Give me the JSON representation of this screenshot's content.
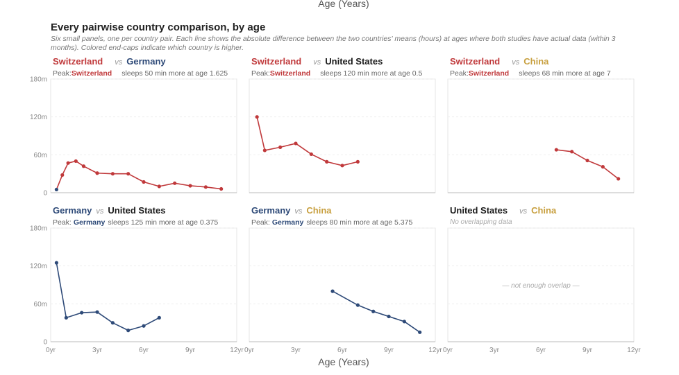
{
  "top_axis_title": "Age (Years)",
  "title": "Every pairwise country comparison, by age",
  "subtitle": "Six small panels, one per country pair. Each line shows the absolute difference between the two countries' means (hours) at ages where both studies have actual data (within 3 months). Colored end-caps indicate which country is higher.",
  "colors": {
    "Switzerland": "#c0393b",
    "Germany": "#2e4a78",
    "United States": "#1a1a1a",
    "China": "#c8a040"
  },
  "chart_data": {
    "type": "line",
    "small_multiples": true,
    "xlabel": "Age (Years)",
    "xlim": [
      0,
      12
    ],
    "ylim": [
      0,
      180
    ],
    "x_ticks": [
      "0yr",
      "3yr",
      "6yr",
      "9yr",
      "12yr"
    ],
    "y_ticks": [
      "0",
      "60m",
      "120m",
      "180m"
    ],
    "panels": [
      {
        "a": "Switzerland",
        "vs": "vs",
        "b": "Germany",
        "peak_prefix": "Peak:",
        "peak_country": "Switzerland",
        "peak_text": "sleeps 50 min more at age 1.625",
        "series": {
          "x": [
            0.375,
            0.75,
            1.125,
            1.625,
            2.125,
            3,
            4,
            5,
            6,
            7,
            8,
            9,
            10,
            11
          ],
          "y": [
            5,
            28,
            47,
            50,
            42,
            31,
            30,
            30,
            17,
            10,
            15,
            11,
            9,
            6
          ],
          "colors": [
            "de",
            "sw",
            "sw",
            "sw",
            "sw",
            "sw",
            "sw",
            "sw",
            "sw",
            "sw",
            "sw",
            "sw",
            "sw",
            "sw"
          ]
        }
      },
      {
        "a": "Switzerland",
        "vs": "vs",
        "b": "United States",
        "peak_prefix": "Peak:",
        "peak_country": "Switzerland",
        "peak_text": "sleeps 120 min more at age 0.5",
        "series": {
          "x": [
            0.5,
            1,
            2,
            3,
            4,
            5,
            6,
            7
          ],
          "y": [
            120,
            67,
            72,
            78,
            61,
            49,
            43,
            49
          ],
          "colors": [
            "sw",
            "sw",
            "sw",
            "sw",
            "sw",
            "sw",
            "sw",
            "sw"
          ]
        }
      },
      {
        "a": "Switzerland",
        "vs": "vs",
        "b": "China",
        "peak_prefix": "Peak:",
        "peak_country": "Switzerland",
        "peak_text": "sleeps 68 min more at age 7",
        "series": {
          "x": [
            7,
            8,
            9,
            10,
            11
          ],
          "y": [
            68,
            65,
            51,
            41,
            22
          ],
          "colors": [
            "sw",
            "sw",
            "sw",
            "sw",
            "sw"
          ]
        }
      },
      {
        "a": "Germany",
        "vs": "vs",
        "b": "United States",
        "peak_prefix": "Peak:",
        "peak_country": "Germany",
        "peak_text": "sleeps 125 min more at age 0.375",
        "series": {
          "x": [
            0.375,
            1,
            2,
            3,
            4,
            5,
            6,
            7
          ],
          "y": [
            125,
            38,
            46,
            47,
            30,
            18,
            25,
            38
          ],
          "colors": [
            "de",
            "de",
            "de",
            "de",
            "de",
            "de",
            "de",
            "de"
          ]
        }
      },
      {
        "a": "Germany",
        "vs": "vs",
        "b": "China",
        "peak_prefix": "Peak:",
        "peak_country": "Germany",
        "peak_text": "sleeps 80 min more at age 5.375",
        "series": {
          "x": [
            5.375,
            7,
            8,
            9,
            10,
            11
          ],
          "y": [
            80,
            58,
            48,
            40,
            32,
            15
          ],
          "colors": [
            "de",
            "de",
            "de",
            "de",
            "de",
            "de"
          ]
        }
      },
      {
        "a": "United States",
        "vs": "vs",
        "b": "China",
        "no_data": "No overlapping data",
        "empty_label": "— not enough overlap —",
        "series": null
      }
    ]
  }
}
